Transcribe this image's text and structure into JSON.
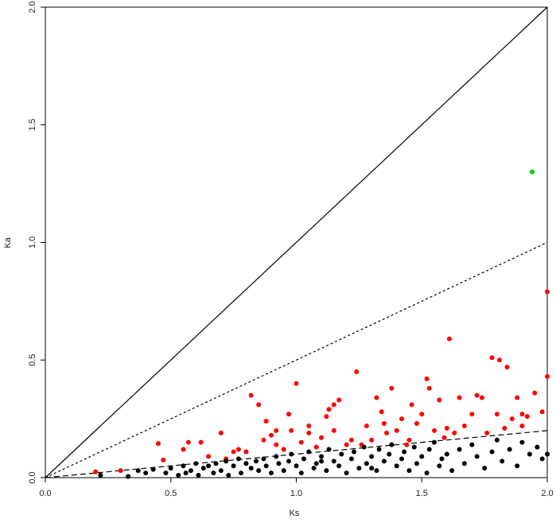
{
  "chart_data": {
    "type": "scatter",
    "xlabel": "Ks",
    "ylabel": "Ka",
    "xlim": [
      0,
      2
    ],
    "ylim": [
      0,
      2
    ],
    "xticks": [
      {
        "value": 0,
        "label": "0.0"
      },
      0.5,
      {
        "value": 1,
        "label": "1.0"
      },
      1.5,
      {
        "value": 2,
        "label": "2.0"
      }
    ],
    "yticks": [
      {
        "value": 0,
        "label": "0.0"
      },
      0.5,
      {
        "value": 1,
        "label": "1.0"
      },
      1.5,
      {
        "value": 2,
        "label": "2.0"
      }
    ],
    "reference_lines": [
      {
        "slope": 1,
        "style": "solid"
      },
      {
        "slope": 0.5,
        "style": "dotted"
      },
      {
        "slope": 0.1,
        "style": "dashed"
      }
    ],
    "series": [
      {
        "color": "#ff0000",
        "x": [
          0.2,
          0.3,
          0.45,
          0.47,
          0.55,
          0.57,
          0.62,
          0.65,
          0.7,
          0.72,
          0.75,
          0.77,
          0.8,
          0.82,
          0.85,
          0.87,
          0.88,
          0.9,
          0.92,
          0.95,
          0.97,
          1.0,
          1.02,
          1.05,
          1.08,
          1.1,
          1.12,
          1.13,
          1.15,
          1.17,
          1.2,
          1.22,
          1.24,
          1.26,
          1.28,
          1.3,
          1.32,
          1.34,
          1.36,
          1.38,
          1.4,
          1.42,
          1.44,
          1.46,
          1.48,
          1.5,
          1.52,
          1.53,
          1.55,
          1.57,
          1.59,
          1.61,
          1.63,
          1.65,
          1.67,
          1.7,
          1.72,
          1.74,
          1.76,
          1.78,
          1.8,
          1.81,
          1.83,
          1.84,
          1.86,
          1.88,
          1.9,
          1.92,
          1.95,
          1.98,
          2.0,
          2.0,
          1.9,
          1.15,
          0.98,
          1.35,
          1.6,
          0.92,
          1.05,
          1.45
        ],
        "values": [
          0.025,
          0.03,
          0.145,
          0.075,
          0.12,
          0.15,
          0.15,
          0.09,
          0.19,
          0.08,
          0.11,
          0.12,
          0.11,
          0.35,
          0.31,
          0.16,
          0.24,
          0.18,
          0.14,
          0.12,
          0.27,
          0.4,
          0.15,
          0.19,
          0.13,
          0.17,
          0.26,
          0.29,
          0.31,
          0.33,
          0.14,
          0.16,
          0.45,
          0.14,
          0.22,
          0.16,
          0.34,
          0.28,
          0.19,
          0.38,
          0.2,
          0.25,
          0.14,
          0.31,
          0.23,
          0.27,
          0.42,
          0.38,
          0.2,
          0.33,
          0.17,
          0.59,
          0.19,
          0.34,
          0.22,
          0.27,
          0.35,
          0.34,
          0.19,
          0.51,
          0.27,
          0.5,
          0.21,
          0.47,
          0.25,
          0.34,
          0.27,
          0.26,
          0.36,
          0.28,
          0.43,
          0.79,
          0.22,
          0.2,
          0.2,
          0.23,
          0.21,
          0.2,
          0.22,
          0.16
        ]
      },
      {
        "color": "#000000",
        "x": [
          0.22,
          0.33,
          0.37,
          0.4,
          0.43,
          0.48,
          0.5,
          0.53,
          0.55,
          0.56,
          0.58,
          0.6,
          0.61,
          0.63,
          0.65,
          0.67,
          0.68,
          0.7,
          0.72,
          0.73,
          0.75,
          0.77,
          0.78,
          0.8,
          0.82,
          0.84,
          0.85,
          0.87,
          0.88,
          0.9,
          0.92,
          0.93,
          0.95,
          0.97,
          0.98,
          1.0,
          1.02,
          1.03,
          1.05,
          1.07,
          1.08,
          1.1,
          1.12,
          1.13,
          1.15,
          1.17,
          1.18,
          1.2,
          1.22,
          1.23,
          1.25,
          1.27,
          1.28,
          1.3,
          1.32,
          1.33,
          1.35,
          1.37,
          1.38,
          1.4,
          1.42,
          1.43,
          1.45,
          1.47,
          1.48,
          1.5,
          1.52,
          1.53,
          1.55,
          1.57,
          1.58,
          1.6,
          1.62,
          1.65,
          1.67,
          1.7,
          1.72,
          1.75,
          1.78,
          1.8,
          1.82,
          1.85,
          1.88,
          1.9,
          1.93,
          1.96,
          1.98,
          2.0,
          1.1,
          1.3
        ],
        "values": [
          0.01,
          0.005,
          0.03,
          0.02,
          0.035,
          0.02,
          0.04,
          0.01,
          0.05,
          0.02,
          0.03,
          0.06,
          0.01,
          0.04,
          0.05,
          0.02,
          0.06,
          0.03,
          0.07,
          0.01,
          0.05,
          0.08,
          0.02,
          0.06,
          0.04,
          0.07,
          0.03,
          0.08,
          0.05,
          0.02,
          0.09,
          0.06,
          0.03,
          0.07,
          0.1,
          0.05,
          0.02,
          0.08,
          0.11,
          0.04,
          0.06,
          0.09,
          0.03,
          0.12,
          0.07,
          0.05,
          0.1,
          0.02,
          0.08,
          0.11,
          0.04,
          0.13,
          0.06,
          0.09,
          0.03,
          0.12,
          0.07,
          0.1,
          0.14,
          0.05,
          0.08,
          0.11,
          0.03,
          0.13,
          0.06,
          0.09,
          0.02,
          0.12,
          0.15,
          0.05,
          0.08,
          0.1,
          0.03,
          0.12,
          0.06,
          0.14,
          0.09,
          0.04,
          0.11,
          0.16,
          0.07,
          0.12,
          0.05,
          0.15,
          0.1,
          0.13,
          0.08,
          0.1,
          0.07,
          0.04
        ]
      },
      {
        "color": "#00cc00",
        "x": [
          1.94
        ],
        "values": [
          1.3
        ]
      }
    ]
  }
}
